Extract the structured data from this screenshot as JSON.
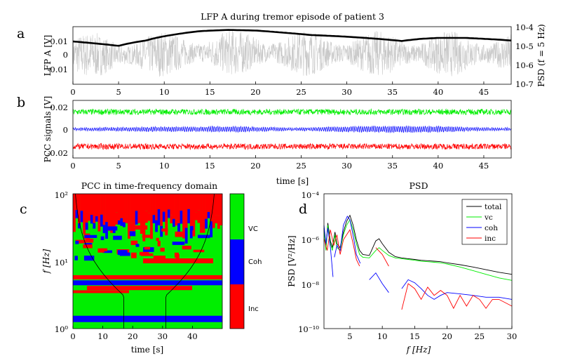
{
  "panels": {
    "a": {
      "letter": "a",
      "title": "LFP A during tremor episode of patient 3",
      "ylabel": "LFP A [V]",
      "ylabel_right": "PSD (f = 5 Hz)",
      "x_ticks": [
        "0",
        "5",
        "10",
        "15",
        "20",
        "25",
        "30",
        "35",
        "40",
        "45"
      ],
      "y_ticks": [
        "0.01",
        "0",
        "-0.01"
      ],
      "y2_ticks": [
        "10-4",
        "10-5",
        "10-6",
        "10-7"
      ]
    },
    "b": {
      "letter": "b",
      "ylabel": "PCC signals [V]",
      "xlabel": "time [s]",
      "x_ticks": [
        "0",
        "5",
        "10",
        "15",
        "20",
        "25",
        "30",
        "35",
        "40",
        "45"
      ],
      "y_ticks": [
        "0.02",
        "0",
        "-0.02"
      ]
    },
    "c": {
      "letter": "c",
      "title": "PCC in time-frequency domain",
      "xlabel": "time [s]",
      "ylabel": "f [Hz]",
      "x_ticks": [
        "0",
        "10",
        "20",
        "30",
        "40"
      ],
      "y_ticks": [
        "10²",
        "10¹",
        "10⁰"
      ],
      "colorbar": [
        "VC",
        "Coh",
        "Inc"
      ]
    },
    "d": {
      "letter": "d",
      "title": "PSD",
      "xlabel": "f [Hz]",
      "ylabel": "PSD [V²/Hz]",
      "x_ticks": [
        "5",
        "10",
        "15",
        "20",
        "25",
        "30"
      ],
      "y_ticks": [
        "10⁻⁴",
        "10⁻⁶",
        "10⁻⁸",
        "10⁻¹⁰"
      ]
    }
  },
  "colors": {
    "vc": "#00ee00",
    "coh": "#0000ff",
    "inc": "#ff0000",
    "raw": "#c8c8c8",
    "total": "#000000"
  },
  "chart_data": [
    {
      "type": "line",
      "panel": "a",
      "xlim": [
        0,
        48
      ],
      "ylim": [
        -0.02,
        0.02
      ],
      "y2lim_log": [
        1e-07,
        0.0001
      ],
      "series": [
        {
          "role": "raw",
          "x": [
            0,
            5,
            10,
            15,
            20,
            25,
            30,
            35,
            40,
            45,
            48
          ],
          "values": [
            0.002,
            0,
            0.004,
            0.007,
            0.007,
            0.006,
            0.005,
            0.004,
            0.004,
            0.004,
            0.003
          ]
        },
        {
          "role": "envelope",
          "x": [
            0,
            2,
            5,
            8,
            11,
            14,
            17,
            20,
            23,
            26,
            30,
            33,
            36,
            38,
            40,
            43,
            46,
            48
          ],
          "values": [
            1.7e-05,
            1.4e-05,
            1e-05,
            1.9e-05,
            3.8e-05,
            5.9e-05,
            6.8e-05,
            6.3e-05,
            4.9e-05,
            3.7e-05,
            3e-05,
            2.4e-05,
            1.8e-05,
            2.3e-05,
            2.6e-05,
            2.6e-05,
            2.2e-05,
            1.9e-05
          ]
        }
      ]
    },
    {
      "type": "line",
      "panel": "b",
      "xlim": [
        0,
        48
      ],
      "ylim": [
        -0.025,
        0.025
      ],
      "series": [
        {
          "name": "VC",
          "offset": 0.015,
          "amplitude": 0.0025
        },
        {
          "name": "Coh",
          "offset": 0.0,
          "amplitude": 0.0022
        },
        {
          "name": "Inc",
          "offset": -0.015,
          "amplitude": 0.0025
        }
      ]
    },
    {
      "type": "heatmap",
      "panel": "c",
      "xlim": [
        0,
        50
      ],
      "ylim_log": [
        1,
        100
      ],
      "categories": [
        "VC",
        "Coh",
        "Inc"
      ]
    },
    {
      "type": "line",
      "panel": "d",
      "xlim": [
        1,
        30
      ],
      "ylim_log": [
        1e-10,
        0.0001
      ],
      "series": [
        {
          "name": "total",
          "x": [
            1,
            1.3,
            1.6,
            2,
            2.3,
            2.7,
            3,
            3.5,
            4,
            4.5,
            5,
            5.5,
            6,
            6.5,
            7,
            8,
            9,
            9.5,
            10,
            11,
            12,
            13,
            14,
            15,
            16,
            17,
            18,
            19,
            20,
            22,
            24,
            26,
            28,
            30
          ],
          "values": [
            3e-06,
            4e-07,
            5e-06,
            8e-07,
            4e-07,
            2e-06,
            6e-07,
            4e-07,
            2e-06,
            6e-06,
            1.1e-05,
            4e-06,
            9e-07,
            3e-07,
            2e-07,
            1.8e-07,
            8e-07,
            1e-06,
            6e-07,
            2.5e-07,
            1.6e-07,
            1.4e-07,
            1.3e-07,
            1.2e-07,
            1.1e-07,
            1.05e-07,
            1e-07,
            9.5e-08,
            8.5e-08,
            7e-08,
            5.5e-08,
            4.2e-08,
            3.2e-08,
            2.6e-08
          ]
        },
        {
          "name": "vc",
          "x": [
            1,
            1.3,
            1.6,
            2,
            2.3,
            2.7,
            3,
            3.5,
            4,
            4.5,
            5,
            5.5,
            6,
            6.5,
            7,
            8,
            9,
            9.5,
            10,
            11,
            12,
            13,
            14,
            15,
            16,
            17,
            18,
            19,
            20,
            22,
            24,
            26,
            28,
            30
          ],
          "values": [
            2.5e-06,
            3e-07,
            4e-06,
            6e-07,
            3e-07,
            1.5e-06,
            4e-07,
            3e-07,
            1.5e-06,
            4e-06,
            7e-06,
            2.5e-06,
            6e-07,
            2e-07,
            1.5e-07,
            1.4e-07,
            3e-07,
            4e-07,
            3e-07,
            1.8e-07,
            1.4e-07,
            1.3e-07,
            1.2e-07,
            1.1e-07,
            1e-07,
            9.5e-08,
            9e-08,
            8.5e-08,
            7.5e-08,
            5.5e-08,
            3.8e-08,
            2.6e-08,
            1.8e-08,
            1.4e-08
          ]
        },
        {
          "name": "coh",
          "segments": [
            {
              "x": [
                1,
                1.3,
                1.6,
                2,
                2.4
              ],
              "values": [
                4e-06,
                6e-07,
                3e-06,
                4e-07,
                2e-08
              ]
            },
            {
              "x": [
                2.6,
                3,
                3.5,
                4,
                4.6,
                5,
                5.6,
                6,
                6.6
              ],
              "values": [
                1.5e-07,
                5e-07,
                3e-07,
                4e-06,
                1e-05,
                7e-06,
                1e-06,
                2e-07,
                8e-08
              ]
            },
            {
              "x": [
                8,
                9,
                10,
                11
              ],
              "values": [
                1.5e-08,
                3e-08,
                1e-08,
                4e-09
              ]
            },
            {
              "x": [
                13,
                14,
                15,
                16,
                17,
                18,
                19,
                20,
                22,
                24,
                26,
                28,
                30
              ],
              "values": [
                6e-09,
                1.5e-08,
                1.1e-08,
                6e-09,
                3e-09,
                2e-09,
                3e-09,
                4e-09,
                3.5e-09,
                3e-09,
                2.5e-09,
                2.5e-09,
                2e-09
              ]
            }
          ]
        },
        {
          "name": "inc",
          "segments": [
            {
              "x": [
                1,
                1.5,
                2,
                2.5,
                3,
                3.5,
                4,
                4.5,
                5,
                5.5,
                6,
                6.5
              ],
              "values": [
                1e-06,
                3e-07,
                2.5e-06,
                5e-07,
                1.5e-06,
                2e-07,
                9e-07,
                1.5e-06,
                2.5e-06,
                6e-07,
                1.2e-07,
                6e-08
              ]
            },
            {
              "x": [
                9,
                10,
                11
              ],
              "values": [
                4e-07,
                2e-07,
                6e-08
              ]
            },
            {
              "x": [
                13,
                14,
                15,
                16,
                17,
                18,
                19,
                20,
                21,
                22,
                23,
                24,
                25,
                26,
                27,
                28,
                30
              ],
              "values": [
                7e-10,
                1e-08,
                6e-09,
                2e-09,
                7e-09,
                3e-09,
                5e-09,
                3e-09,
                8e-10,
                3e-09,
                1e-09,
                3e-09,
                2e-09,
                8e-10,
                2e-09,
                2e-09,
                1e-09
              ]
            }
          ]
        }
      ],
      "legend": [
        "total",
        "vc",
        "coh",
        "inc"
      ],
      "legend_position": "top-right"
    }
  ]
}
